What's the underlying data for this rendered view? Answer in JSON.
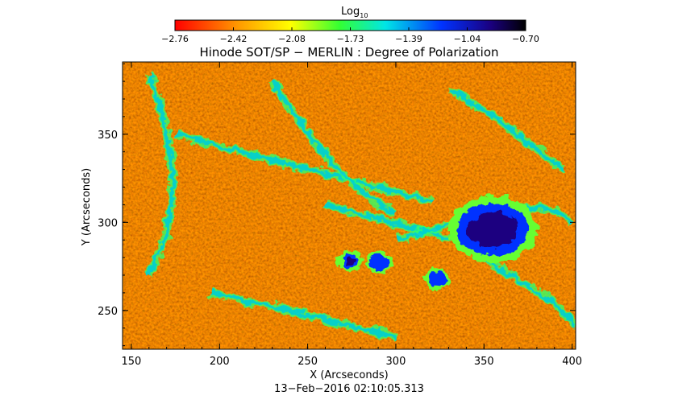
{
  "chart_data": {
    "type": "heatmap",
    "title": "Hinode SOT/SP − MERLIN : Degree of Polarization",
    "xlabel": "X (Arcseconds)",
    "ylabel": "Y (Arcseconds)",
    "xlim": [
      145,
      402
    ],
    "ylim": [
      228,
      391
    ],
    "x_ticks": [
      150,
      200,
      250,
      300,
      350,
      400
    ],
    "y_ticks": [
      250,
      300,
      350
    ],
    "x_tick_labels": [
      "150",
      "200",
      "250",
      "300",
      "350",
      "400"
    ],
    "y_tick_labels": [
      "250",
      "300",
      "350"
    ],
    "colorbar": {
      "label_base": "Log",
      "label_sub": "10",
      "min": -2.76,
      "max": -0.7,
      "ticks": [
        "−2.76",
        "−2.42",
        "−2.08",
        "−1.73",
        "−1.39",
        "−1.04",
        "−0.70"
      ],
      "colormap": [
        "#ff0000",
        "#ff9900",
        "#ffff00",
        "#33ff33",
        "#00e6e6",
        "#0033ff",
        "#1a0080",
        "#000000"
      ]
    },
    "features": [
      {
        "name": "strong polarization patch",
        "x": 355,
        "y": 296,
        "level": -0.85
      },
      {
        "name": "polarization patch",
        "x": 274,
        "y": 278,
        "level": -1.1
      },
      {
        "name": "polarization patch",
        "x": 291,
        "y": 277,
        "level": -1.2
      },
      {
        "name": "polarization patch",
        "x": 323,
        "y": 268,
        "level": -1.2
      }
    ],
    "grid": false
  },
  "footer": {
    "timestamp": "13−Feb−2016 02:10:05.313"
  }
}
